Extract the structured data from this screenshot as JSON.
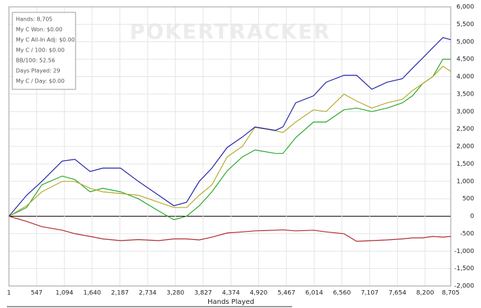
{
  "chart_data": {
    "type": "line",
    "watermark": "POKERTRACKER",
    "info": [
      "Hands: 8,705",
      "My C Won: $0.00",
      "My C All-In Adj: $0.00",
      "My C / 100: $0.00",
      "BB/100: 52.56",
      "Days Played: 29",
      "My C / Day: $0.00"
    ],
    "x_label": "Hands Played",
    "x": [
      1,
      350,
      650,
      1050,
      1300,
      1600,
      1850,
      2200,
      2550,
      2950,
      3250,
      3500,
      3750,
      4000,
      4300,
      4600,
      4850,
      5250,
      5400,
      5650,
      6000,
      6250,
      6600,
      6850,
      7150,
      7450,
      7750,
      7950,
      8150,
      8350,
      8550,
      8705
    ],
    "series": [
      {
        "color": "#1c1ca6",
        "values": [
          0,
          600,
          1000,
          1580,
          1630,
          1280,
          1380,
          1380,
          1000,
          600,
          300,
          400,
          1000,
          1380,
          1970,
          2270,
          2560,
          2460,
          2560,
          3250,
          3450,
          3840,
          4040,
          4040,
          3640,
          3840,
          3940,
          4240,
          4530,
          4830,
          5120,
          5060
        ]
      },
      {
        "color": "#b3a82a",
        "values": [
          0,
          300,
          700,
          1000,
          1000,
          800,
          700,
          650,
          600,
          400,
          250,
          250,
          600,
          900,
          1700,
          2000,
          2550,
          2450,
          2400,
          2700,
          3050,
          3000,
          3500,
          3300,
          3100,
          3250,
          3350,
          3600,
          3800,
          4000,
          4300,
          4150
        ]
      },
      {
        "color": "#22a622",
        "values": [
          0,
          250,
          900,
          1150,
          1050,
          700,
          800,
          700,
          500,
          150,
          -100,
          0,
          300,
          700,
          1300,
          1700,
          1900,
          1800,
          1800,
          2250,
          2700,
          2700,
          3050,
          3100,
          3000,
          3100,
          3250,
          3450,
          3800,
          4000,
          4500,
          4500
        ]
      },
      {
        "color": "#b02424",
        "values": [
          0,
          -150,
          -300,
          -400,
          -500,
          -580,
          -650,
          -700,
          -670,
          -700,
          -650,
          -650,
          -680,
          -600,
          -480,
          -450,
          -420,
          -400,
          -390,
          -420,
          -400,
          -450,
          -500,
          -720,
          -700,
          -680,
          -650,
          -620,
          -620,
          -580,
          -600,
          -580
        ]
      }
    ],
    "xlim": [
      1,
      8705
    ],
    "xticks": [
      1,
      547,
      {
        "value": 1094,
        "label": "1,094"
      },
      {
        "value": 1640,
        "label": "1,640"
      },
      {
        "value": 2187,
        "label": "2,187"
      },
      {
        "value": 2734,
        "label": "2,734"
      },
      {
        "value": 3280,
        "label": "3,280"
      },
      {
        "value": 3827,
        "label": "3,827"
      },
      {
        "value": 4374,
        "label": "4,374"
      },
      {
        "value": 4920,
        "label": "4,920"
      },
      {
        "value": 5467,
        "label": "5,467"
      },
      {
        "value": 6014,
        "label": "6,014"
      },
      {
        "value": 6560,
        "label": "6,560"
      },
      {
        "value": 7107,
        "label": "7,107"
      },
      {
        "value": 7654,
        "label": "7,654"
      },
      {
        "value": 8200,
        "label": "8,200"
      },
      {
        "value": 8705,
        "label": "8,705"
      }
    ],
    "ylim": [
      -2000,
      6000
    ],
    "yticks": [
      {
        "value": -2000,
        "label": "-2,000"
      },
      {
        "value": -1500,
        "label": "-1,500"
      },
      {
        "value": -1000,
        "label": "-1,000"
      },
      -500,
      0,
      500,
      {
        "value": 1000,
        "label": "1,000"
      },
      {
        "value": 1500,
        "label": "1,500"
      },
      {
        "value": 2000,
        "label": "2,000"
      },
      {
        "value": 2500,
        "label": "2,500"
      },
      {
        "value": 3000,
        "label": "3,000"
      },
      {
        "value": 3500,
        "label": "3,500"
      },
      {
        "value": 4000,
        "label": "4,000"
      },
      {
        "value": 4500,
        "label": "4,500"
      },
      {
        "value": 5000,
        "label": "5,000"
      },
      {
        "value": 5500,
        "label": "5,500"
      },
      {
        "value": 6000,
        "label": "6,000"
      }
    ],
    "grid": true
  }
}
